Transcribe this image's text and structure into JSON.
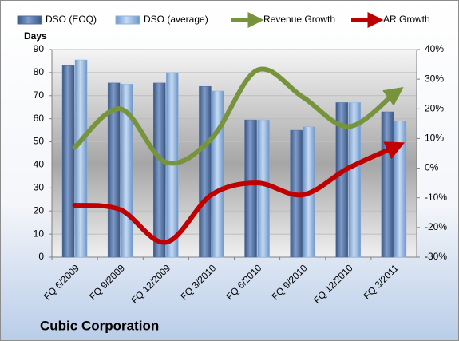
{
  "chart_data": {
    "type": "bar-line",
    "title": "Cubic Corporation",
    "y_label": "Days",
    "categories": [
      "FQ 6/2009",
      "FQ 9/2009",
      "FQ 12/2009",
      "FQ 3/2010",
      "FQ 6/2010",
      "FQ 9/2010",
      "FQ 12/2010",
      "FQ 3/2011"
    ],
    "series": [
      {
        "name": "DSO (EOQ)",
        "type": "bar",
        "color": "#4f6fa0",
        "values": [
          83,
          75.5,
          75.5,
          74,
          59.5,
          55,
          67,
          63
        ]
      },
      {
        "name": "DSO (average)",
        "type": "bar",
        "color": "#8db3e2",
        "values": [
          85.5,
          75,
          80,
          72,
          59.5,
          56.5,
          67,
          59
        ]
      },
      {
        "name": "Revenue Growth",
        "type": "line",
        "axis": "y2",
        "color": "#77933c",
        "values": [
          7,
          20,
          2,
          10,
          33,
          24,
          14,
          25
        ]
      },
      {
        "name": "AR Growth",
        "type": "line",
        "axis": "y2",
        "color": "#c00000",
        "values": [
          -12.5,
          -14,
          -25,
          -9,
          -5,
          -9,
          0,
          7
        ]
      }
    ],
    "ylim": [
      0,
      90
    ],
    "yticks": [
      0,
      10,
      20,
      30,
      40,
      50,
      60,
      70,
      80,
      90
    ],
    "y2lim": [
      -30,
      40
    ],
    "y2ticks": [
      {
        "value": -30,
        "label": "-30%"
      },
      {
        "value": -20,
        "label": "-20%"
      },
      {
        "value": -10,
        "label": "-10%"
      },
      {
        "value": 0,
        "label": "0%"
      },
      {
        "value": 10,
        "label": "10%"
      },
      {
        "value": 20,
        "label": "20%"
      },
      {
        "value": 30,
        "label": "30%"
      },
      {
        "value": 40,
        "label": "40%"
      }
    ],
    "grid": true
  }
}
